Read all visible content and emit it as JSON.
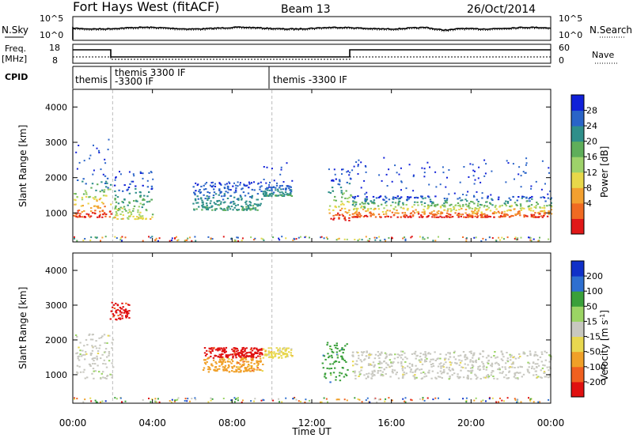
{
  "header": {
    "title": "Fort Hays West (fitACF)",
    "beam": "Beam 13",
    "date": "26/Oct/2014"
  },
  "status_panels": {
    "noise": {
      "left_label": "N.Sky",
      "left_ticks": [
        "10^5",
        "10^0"
      ],
      "right_label": "N.Search",
      "right_ticks": [
        "10^5",
        "10^0"
      ]
    },
    "freq": {
      "left_label_1": "Freq.",
      "left_label_2": "[MHz]",
      "left_ticks": [
        "18",
        "8"
      ],
      "right_label": "Nave",
      "right_ticks": [
        "60",
        "0"
      ]
    },
    "cpid": {
      "label": "CPID",
      "programs": [
        {
          "t": 0.0,
          "line1": "themis",
          "line2": ""
        },
        {
          "t": 2.0,
          "line1": "themis 3300 IF",
          "line2": "-3300 IF"
        },
        {
          "t": 10.0,
          "line1": "themis -3300 IF",
          "line2": ""
        }
      ]
    }
  },
  "chart_data": [
    {
      "type": "heatmap",
      "name": "power",
      "ylabel": "Slant Range [km]",
      "ylim": [
        180,
        4500
      ],
      "yticks": [
        "1000",
        "2000",
        "3000",
        "4000"
      ],
      "xlim": [
        0,
        24
      ],
      "colorbar": {
        "label": "Power [dB]",
        "ticks": [
          "28",
          "24",
          "20",
          "16",
          "12",
          "8",
          "4"
        ],
        "colors": [
          "#1020d8",
          "#2a64c8",
          "#2f8f8a",
          "#5fae5a",
          "#9ed26a",
          "#e8d84a",
          "#f3a030",
          "#f06a22",
          "#e01818"
        ]
      },
      "bands": [
        {
          "t0": 0.0,
          "t1": 1.9,
          "r0": 900,
          "r1": 2100,
          "level": "strong",
          "cloud_top": 3100
        },
        {
          "t0": 2.0,
          "t1": 4.0,
          "r0": 850,
          "r1": 1900,
          "level": "mid",
          "cloud_top": 2200
        },
        {
          "t0": 6.0,
          "t1": 9.5,
          "r0": 1100,
          "r1": 1800,
          "level": "weak",
          "cloud_top": 1900
        },
        {
          "t0": 9.5,
          "t1": 11.0,
          "r0": 1500,
          "r1": 1800,
          "level": "weak",
          "cloud_top": 2500
        },
        {
          "t0": 12.8,
          "t1": 14.0,
          "r0": 800,
          "r1": 2000,
          "level": "strong",
          "cloud_top": 2300
        },
        {
          "t0": 14.0,
          "t1": 24.0,
          "r0": 900,
          "r1": 1500,
          "level": "strong",
          "cloud_top": 2600
        }
      ]
    },
    {
      "type": "heatmap",
      "name": "velocity",
      "ylabel": "Slant Range [km]",
      "ylim": [
        180,
        4500
      ],
      "yticks": [
        "1000",
        "2000",
        "3000",
        "4000"
      ],
      "xlim": [
        0,
        24
      ],
      "xticks": [
        "00:00",
        "04:00",
        "08:00",
        "12:00",
        "16:00",
        "20:00",
        "00:00"
      ],
      "xlabel": "Time UT",
      "colorbar": {
        "label": "Velocity [m s",
        "label_sup": "-1",
        "label_end": "]",
        "ticks": [
          "200",
          "100",
          "50",
          "15",
          "-15",
          "-50",
          "-100",
          "-200"
        ],
        "colors": [
          "#1030c8",
          "#2e6fd0",
          "#3aa03a",
          "#9bd464",
          "#c8c8c0",
          "#e8d850",
          "#f0a028",
          "#f06020",
          "#e01010"
        ]
      },
      "bands": [
        {
          "t0": 0.0,
          "t1": 2.0,
          "r0": 900,
          "r1": 2200,
          "vel": "ground"
        },
        {
          "t0": 1.8,
          "t1": 2.8,
          "r0": 2600,
          "r1": 3100,
          "vel": "-200"
        },
        {
          "t0": 6.5,
          "t1": 9.5,
          "r0": 1500,
          "r1": 1800,
          "vel": "-200"
        },
        {
          "t0": 6.5,
          "t1": 9.5,
          "r0": 1100,
          "r1": 1500,
          "vel": "-100"
        },
        {
          "t0": 9.5,
          "t1": 11.0,
          "r0": 1500,
          "r1": 1800,
          "vel": "-50"
        },
        {
          "t0": 12.5,
          "t1": 13.8,
          "r0": 800,
          "r1": 2000,
          "vel": "50"
        },
        {
          "t0": 14.0,
          "t1": 24.0,
          "r0": 900,
          "r1": 1700,
          "vel": "ground"
        }
      ]
    }
  ]
}
